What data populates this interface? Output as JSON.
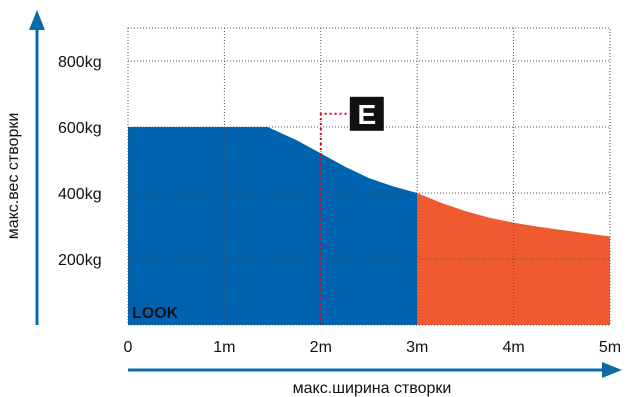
{
  "chart_data": {
    "type": "area",
    "xlabel": "макс.ширина створки",
    "ylabel": "макс.вес створки",
    "x_ticks": [
      "0",
      "1m",
      "2m",
      "3m",
      "4m",
      "5m"
    ],
    "y_ticks": [
      "200kg",
      "400kg",
      "600kg",
      "800kg"
    ],
    "xlim": [
      0,
      5
    ],
    "ylim": [
      0,
      900
    ],
    "grid": true,
    "series": [
      {
        "x": [
          0,
          1.45,
          1.75,
          2.0,
          2.25,
          2.5,
          2.75,
          3.0
        ],
        "y": [
          600,
          600,
          560,
          520,
          480,
          445,
          420,
          400
        ],
        "color": "#0063b0"
      },
      {
        "x": [
          3.0,
          3.25,
          3.5,
          3.75,
          4.0,
          4.25,
          4.5,
          4.75,
          5.0
        ],
        "y": [
          400,
          370,
          345,
          325,
          310,
          298,
          288,
          278,
          268
        ],
        "color": "#f05a30"
      }
    ],
    "watermark": "LOOK",
    "marker": {
      "label": "E",
      "x": 2.0,
      "y": 640
    },
    "axis_color": "#0b6aa8",
    "marker_color": "#e2001a"
  }
}
